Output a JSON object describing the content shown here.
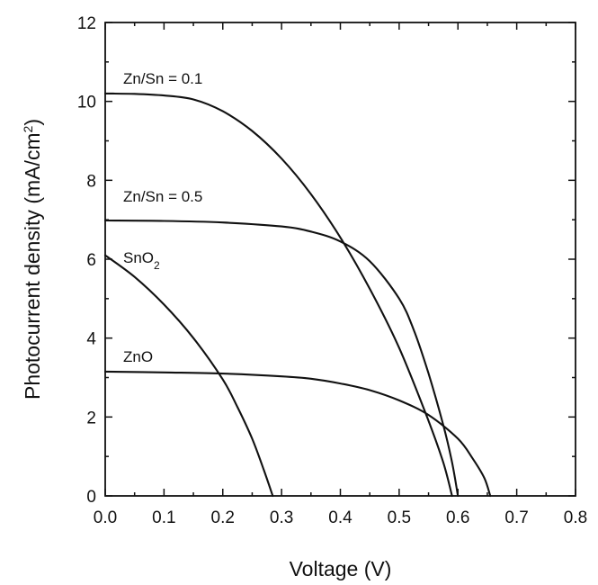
{
  "chart_data": {
    "type": "line",
    "title": "",
    "xlabel": "Voltage (V)",
    "ylabel": {
      "main": "Photocurrent density (mA/cm",
      "sup": "2",
      "tail": ")"
    },
    "xlim": [
      0.0,
      0.8
    ],
    "ylim": [
      0,
      12
    ],
    "xticks": [
      "0.0",
      "0.1",
      "0.2",
      "0.3",
      "0.4",
      "0.5",
      "0.6",
      "0.7",
      "0.8"
    ],
    "yticks": [
      "0",
      "2",
      "4",
      "6",
      "8",
      "10",
      "12"
    ],
    "grid": false,
    "series": [
      {
        "name": "Zn/Sn = 0.1",
        "label": {
          "main": "Zn/Sn = 0.1",
          "sub": ""
        },
        "x": [
          0.0,
          0.05,
          0.1,
          0.15,
          0.2,
          0.25,
          0.3,
          0.35,
          0.4,
          0.45,
          0.5,
          0.55,
          0.575,
          0.59
        ],
        "y": [
          10.2,
          10.19,
          10.15,
          10.05,
          9.75,
          9.25,
          8.55,
          7.65,
          6.55,
          5.25,
          3.75,
          1.9,
          0.85,
          0.0
        ]
      },
      {
        "name": "Zn/Sn = 0.5",
        "label": {
          "main": "Zn/Sn = 0.5",
          "sub": ""
        },
        "x": [
          0.0,
          0.1,
          0.2,
          0.3,
          0.35,
          0.4,
          0.45,
          0.5,
          0.525,
          0.55,
          0.575,
          0.59,
          0.6
        ],
        "y": [
          6.98,
          6.97,
          6.93,
          6.83,
          6.7,
          6.45,
          5.95,
          5.0,
          4.2,
          3.1,
          1.8,
          0.85,
          0.0
        ]
      },
      {
        "name": "SnO2",
        "label": {
          "main": "SnO",
          "sub": "2"
        },
        "x": [
          0.0,
          0.05,
          0.1,
          0.15,
          0.2,
          0.225,
          0.25,
          0.27,
          0.285
        ],
        "y": [
          6.1,
          5.55,
          4.85,
          4.0,
          2.95,
          2.25,
          1.45,
          0.65,
          0.0
        ]
      },
      {
        "name": "ZnO",
        "label": {
          "main": "ZnO",
          "sub": ""
        },
        "x": [
          0.0,
          0.1,
          0.2,
          0.3,
          0.35,
          0.4,
          0.45,
          0.5,
          0.55,
          0.6,
          0.625,
          0.645,
          0.655
        ],
        "y": [
          3.15,
          3.13,
          3.1,
          3.03,
          2.97,
          2.85,
          2.68,
          2.42,
          2.05,
          1.45,
          0.95,
          0.45,
          0.0
        ]
      }
    ]
  }
}
